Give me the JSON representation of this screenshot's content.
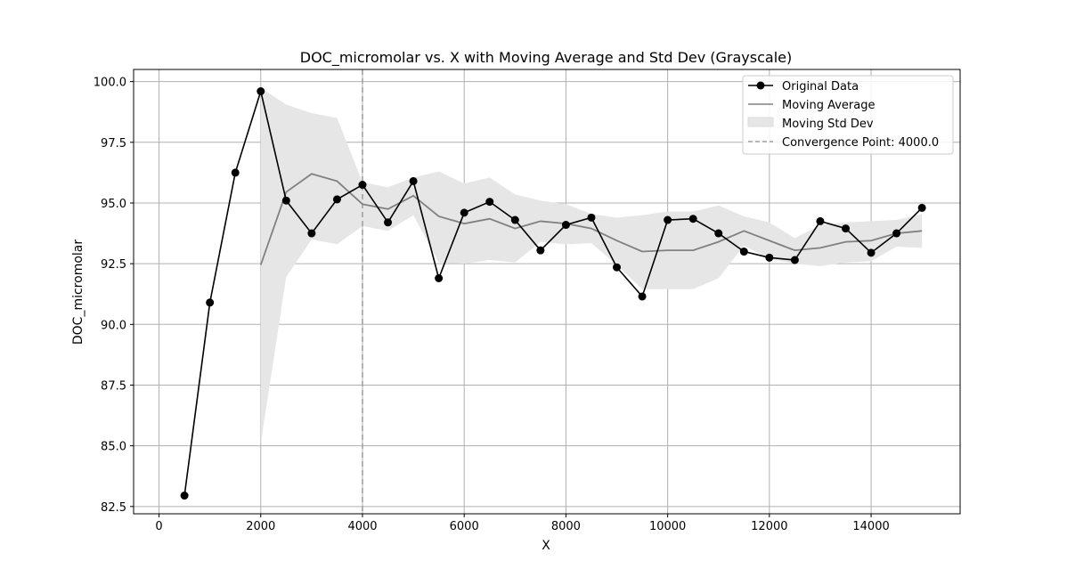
{
  "chart_data": {
    "type": "line",
    "title": "DOC_micromolar vs. X with Moving Average and Std Dev (Grayscale)",
    "xlabel": "X",
    "ylabel": "DOC_micromolar",
    "xlim": [
      -500,
      15750
    ],
    "ylim": [
      82.2,
      100.5
    ],
    "xticks": [
      0,
      2000,
      4000,
      6000,
      8000,
      10000,
      12000,
      14000
    ],
    "xtick_labels": [
      "0",
      "2000",
      "4000",
      "6000",
      "8000",
      "10000",
      "12000",
      "14000"
    ],
    "yticks": [
      82.5,
      85.0,
      87.5,
      90.0,
      92.5,
      95.0,
      97.5,
      100.0
    ],
    "ytick_labels": [
      "82.5",
      "85.0",
      "87.5",
      "90.0",
      "92.5",
      "95.0",
      "97.5",
      "100.0"
    ],
    "grid": true,
    "legend_position": "top-right",
    "series": [
      {
        "name": "Original Data",
        "style": "line-with-markers",
        "color": "#000000",
        "x": [
          500,
          1000,
          1500,
          2000,
          2500,
          3000,
          3500,
          4000,
          4500,
          5000,
          5500,
          6000,
          6500,
          7000,
          7500,
          8000,
          8500,
          9000,
          9500,
          10000,
          10500,
          11000,
          11500,
          12000,
          12500,
          13000,
          13500,
          14000,
          14500,
          15000
        ],
        "y": [
          82.95,
          90.9,
          96.25,
          99.6,
          95.1,
          93.75,
          95.15,
          95.75,
          94.2,
          95.9,
          91.9,
          94.6,
          95.05,
          94.3,
          93.05,
          94.1,
          94.4,
          92.35,
          91.15,
          94.3,
          94.35,
          93.75,
          93.0,
          92.75,
          92.65,
          94.25,
          93.95,
          92.95,
          93.75,
          94.8
        ]
      },
      {
        "name": "Moving Average",
        "style": "line",
        "color": "#808080",
        "x": [
          2000,
          2500,
          3000,
          3500,
          4000,
          4500,
          5000,
          5500,
          6000,
          6500,
          7000,
          7500,
          8000,
          8500,
          9000,
          9500,
          10000,
          10500,
          11000,
          11500,
          12000,
          12500,
          13000,
          13500,
          14000,
          14500,
          15000
        ],
        "y": [
          92.45,
          95.45,
          96.2,
          95.9,
          94.95,
          94.75,
          95.3,
          94.45,
          94.15,
          94.35,
          93.95,
          94.25,
          94.15,
          93.95,
          93.45,
          93.0,
          93.05,
          93.05,
          93.4,
          93.85,
          93.45,
          93.05,
          93.15,
          93.4,
          93.45,
          93.75,
          93.85
        ]
      },
      {
        "name": "Moving Std Dev",
        "style": "band",
        "color": "#e6e6e6",
        "x": [
          2000,
          2500,
          3000,
          3500,
          4000,
          4500,
          5000,
          5500,
          6000,
          6500,
          7000,
          7500,
          8000,
          8500,
          9000,
          9500,
          10000,
          10500,
          11000,
          11500,
          12000,
          12500,
          13000,
          13500,
          14000,
          14500,
          15000
        ],
        "lower": [
          85.1,
          91.95,
          93.5,
          93.3,
          94.05,
          93.85,
          94.5,
          92.55,
          92.5,
          92.65,
          92.55,
          93.4,
          93.3,
          93.35,
          92.45,
          91.45,
          91.45,
          91.45,
          91.9,
          93.25,
          92.7,
          92.5,
          92.4,
          92.55,
          92.6,
          93.2,
          93.15
        ],
        "upper": [
          99.75,
          99.05,
          98.7,
          98.5,
          95.85,
          95.65,
          96.05,
          96.3,
          95.8,
          96.05,
          95.35,
          95.1,
          94.95,
          94.55,
          94.4,
          94.5,
          94.65,
          94.65,
          94.9,
          94.45,
          94.2,
          93.55,
          94.1,
          94.2,
          94.25,
          94.3,
          94.55
        ]
      },
      {
        "name": "Convergence Point: 4000.0",
        "style": "vertical-dashed",
        "color": "#a0a0a0",
        "x": 4000
      }
    ]
  }
}
